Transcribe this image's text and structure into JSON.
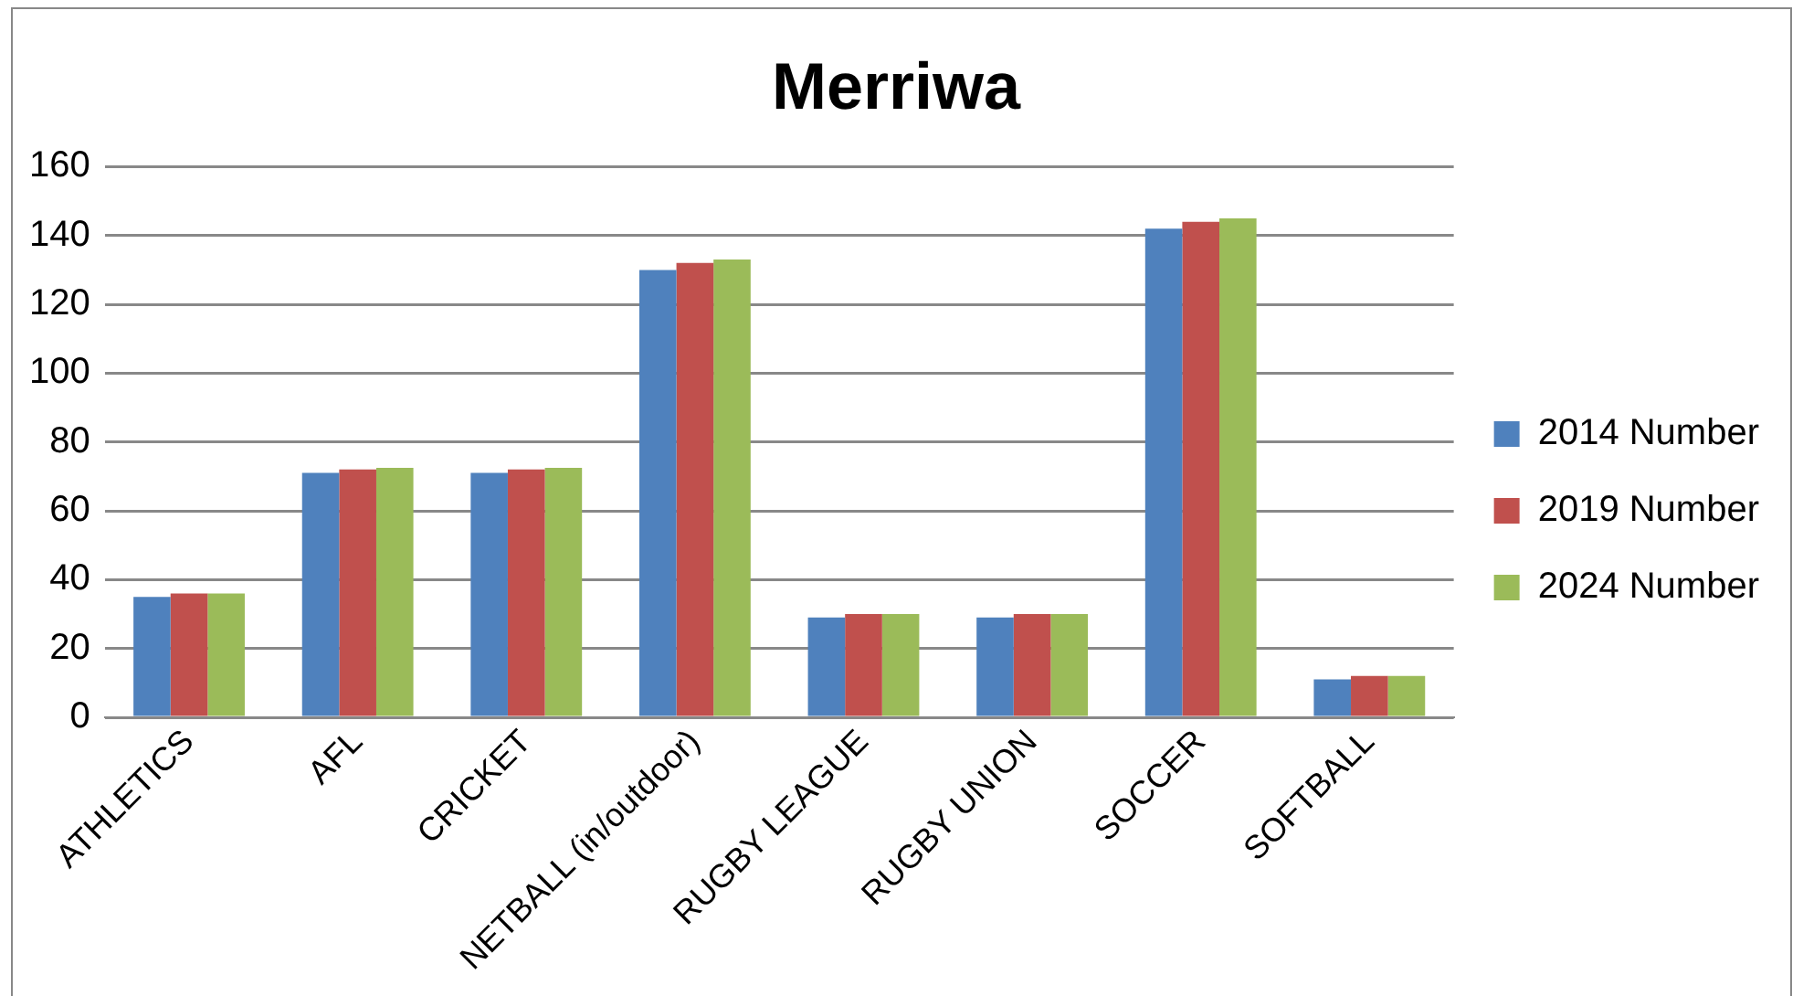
{
  "chart_data": {
    "type": "bar",
    "title": "Merriwa",
    "categories": [
      "ATHLETICS",
      "AFL",
      "CRICKET",
      "NETBALL (in/outdoor)",
      "RUGBY LEAGUE",
      "RUGBY UNION",
      "SOCCER",
      "SOFTBALL"
    ],
    "series": [
      {
        "name": "2014 Number",
        "color": "#4f81bd",
        "values": [
          35,
          71,
          71,
          130,
          29,
          29,
          142,
          11
        ]
      },
      {
        "name": "2019 Number",
        "color": "#c0504d",
        "values": [
          36,
          72,
          72,
          132,
          30,
          30,
          144,
          12
        ]
      },
      {
        "name": "2024 Number",
        "color": "#9bbb59",
        "values": [
          36,
          72.5,
          72.5,
          133,
          30,
          30,
          145,
          12
        ]
      }
    ],
    "ylim": [
      0,
      160
    ],
    "yticks": [
      0,
      20,
      40,
      60,
      80,
      100,
      120,
      140,
      160
    ],
    "grid": "y",
    "legend": "right"
  }
}
